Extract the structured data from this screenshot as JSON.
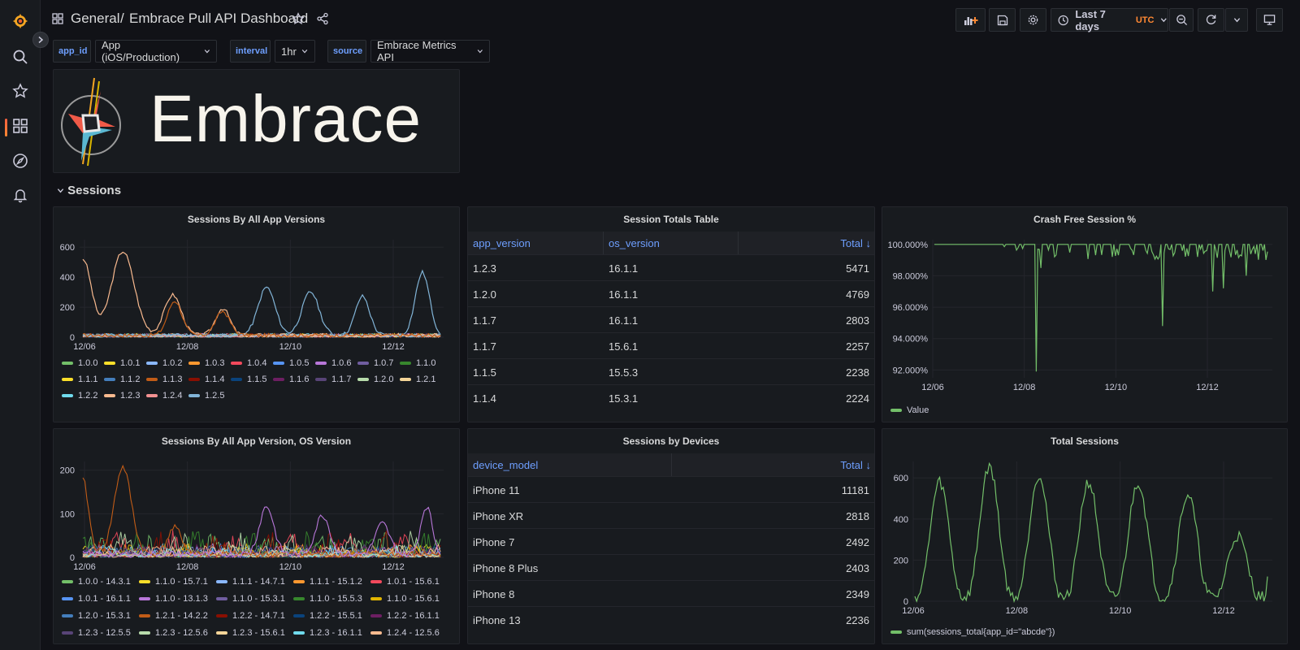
{
  "topbar": {
    "breadcrumb_folder": "General",
    "breadcrumb_sep": "/",
    "dashboard_title": "Embrace Pull API Dashboard",
    "time_range": "Last 7 days",
    "timezone": "UTC"
  },
  "variables": [
    {
      "label": "app_id",
      "value": "App (iOS/Production)"
    },
    {
      "label": "interval",
      "value": "1hr"
    },
    {
      "label": "source",
      "value": "Embrace Metrics API"
    }
  ],
  "logo": {
    "text": "Embrace"
  },
  "row": {
    "title": "Sessions"
  },
  "panels": {
    "p1": {
      "title": "Sessions By All App Versions"
    },
    "p2": {
      "title": "Session Totals Table"
    },
    "p3": {
      "title": "Crash Free Session %"
    },
    "p4": {
      "title": "Sessions By All App Version, OS Version"
    },
    "p5": {
      "title": "Sessions by Devices"
    },
    "p6": {
      "title": "Total Sessions"
    }
  },
  "session_table": {
    "headers": [
      "app_version",
      "os_version",
      "Total ↓"
    ],
    "rows": [
      [
        "1.2.3",
        "16.1.1",
        "5471"
      ],
      [
        "1.2.0",
        "16.1.1",
        "4769"
      ],
      [
        "1.1.7",
        "16.1.1",
        "2803"
      ],
      [
        "1.1.7",
        "15.6.1",
        "2257"
      ],
      [
        "1.1.5",
        "15.5.3",
        "2238"
      ],
      [
        "1.1.4",
        "15.3.1",
        "2224"
      ]
    ]
  },
  "device_table": {
    "headers": [
      "device_model",
      "Total ↓"
    ],
    "rows": [
      [
        "iPhone 11",
        "11181"
      ],
      [
        "iPhone XR",
        "2818"
      ],
      [
        "iPhone 7",
        "2492"
      ],
      [
        "iPhone 8 Plus",
        "2403"
      ],
      [
        "iPhone 8",
        "2349"
      ],
      [
        "iPhone 13",
        "2236"
      ]
    ]
  },
  "chart_data": [
    {
      "type": "line",
      "title": "Sessions By All App Versions",
      "x_ticks": [
        "12/06",
        "12/08",
        "12/10",
        "12/12"
      ],
      "y_ticks": [
        "0",
        "200",
        "400",
        "600"
      ],
      "ylim": [
        0,
        650
      ],
      "legend": [
        {
          "name": "1.0.0",
          "color": "#73bf69"
        },
        {
          "name": "1.0.1",
          "color": "#fade2a"
        },
        {
          "name": "1.0.2",
          "color": "#8ab8ff"
        },
        {
          "name": "1.0.3",
          "color": "#ff9830"
        },
        {
          "name": "1.0.4",
          "color": "#f2495c"
        },
        {
          "name": "1.0.5",
          "color": "#5794f2"
        },
        {
          "name": "1.0.6",
          "color": "#b877d9"
        },
        {
          "name": "1.0.7",
          "color": "#705da0"
        },
        {
          "name": "1.1.0",
          "color": "#37872d"
        },
        {
          "name": "1.1.1",
          "color": "#fade2a"
        },
        {
          "name": "1.1.2",
          "color": "#447ebc"
        },
        {
          "name": "1.1.3",
          "color": "#c15c17"
        },
        {
          "name": "1.1.4",
          "color": "#890f02"
        },
        {
          "name": "1.1.5",
          "color": "#0a437c"
        },
        {
          "name": "1.1.6",
          "color": "#6d1f62"
        },
        {
          "name": "1.1.7",
          "color": "#584477"
        },
        {
          "name": "1.2.0",
          "color": "#b7dbab"
        },
        {
          "name": "1.2.1",
          "color": "#f4d598"
        },
        {
          "name": "1.2.2",
          "color": "#70dbed"
        },
        {
          "name": "1.2.3",
          "color": "#f9ba8f"
        },
        {
          "name": "1.2.4",
          "color": "#f29191"
        },
        {
          "name": "1.2.5",
          "color": "#82b5d8"
        }
      ]
    },
    {
      "type": "line",
      "title": "Crash Free Session %",
      "x_ticks": [
        "12/06",
        "12/08",
        "12/10",
        "12/12"
      ],
      "y_ticks": [
        "92.000%",
        "94.000%",
        "96.000%",
        "98.000%",
        "100.000%"
      ],
      "ylim": [
        91.5,
        100.3
      ],
      "legend": [
        {
          "name": "Value",
          "color": "#73bf69"
        }
      ]
    },
    {
      "type": "line",
      "title": "Sessions By All App Version, OS Version",
      "x_ticks": [
        "12/06",
        "12/08",
        "12/10",
        "12/12"
      ],
      "y_ticks": [
        "0",
        "100",
        "200"
      ],
      "ylim": [
        0,
        220
      ],
      "legend": [
        {
          "name": "1.0.0 - 14.3.1",
          "color": "#73bf69"
        },
        {
          "name": "1.1.0 - 15.7.1",
          "color": "#fade2a"
        },
        {
          "name": "1.1.1 - 14.7.1",
          "color": "#8ab8ff"
        },
        {
          "name": "1.1.1 - 15.1.2",
          "color": "#ff9830"
        },
        {
          "name": "1.0.1 - 15.6.1",
          "color": "#f2495c"
        },
        {
          "name": "1.0.1 - 16.1.1",
          "color": "#5794f2"
        },
        {
          "name": "1.1.0 - 13.1.3",
          "color": "#b877d9"
        },
        {
          "name": "1.1.0 - 15.3.1",
          "color": "#705da0"
        },
        {
          "name": "1.1.0 - 15.5.3",
          "color": "#37872d"
        },
        {
          "name": "1.1.0 - 15.6.1",
          "color": "#e0b400"
        },
        {
          "name": "1.2.0 - 15.3.1",
          "color": "#447ebc"
        },
        {
          "name": "1.2.1 - 14.2.2",
          "color": "#c15c17"
        },
        {
          "name": "1.2.2 - 14.7.1",
          "color": "#890f02"
        },
        {
          "name": "1.2.2 - 15.5.1",
          "color": "#0a437c"
        },
        {
          "name": "1.2.2 - 16.1.1",
          "color": "#6d1f62"
        },
        {
          "name": "1.2.3 - 12.5.5",
          "color": "#584477"
        },
        {
          "name": "1.2.3 - 12.5.6",
          "color": "#b7dbab"
        },
        {
          "name": "1.2.3 - 15.6.1",
          "color": "#f4d598"
        },
        {
          "name": "1.2.3 - 16.1.1",
          "color": "#70dbed"
        },
        {
          "name": "1.2.4 - 12.5.6",
          "color": "#f9ba8f"
        }
      ]
    },
    {
      "type": "line",
      "title": "Total Sessions",
      "x_ticks": [
        "12/06",
        "12/08",
        "12/10",
        "12/12"
      ],
      "y_ticks": [
        "0",
        "200",
        "400",
        "600"
      ],
      "ylim": [
        0,
        680
      ],
      "legend": [
        {
          "name": "sum(sessions_total{app_id=\"abcde\"})",
          "color": "#73bf69"
        }
      ]
    }
  ]
}
